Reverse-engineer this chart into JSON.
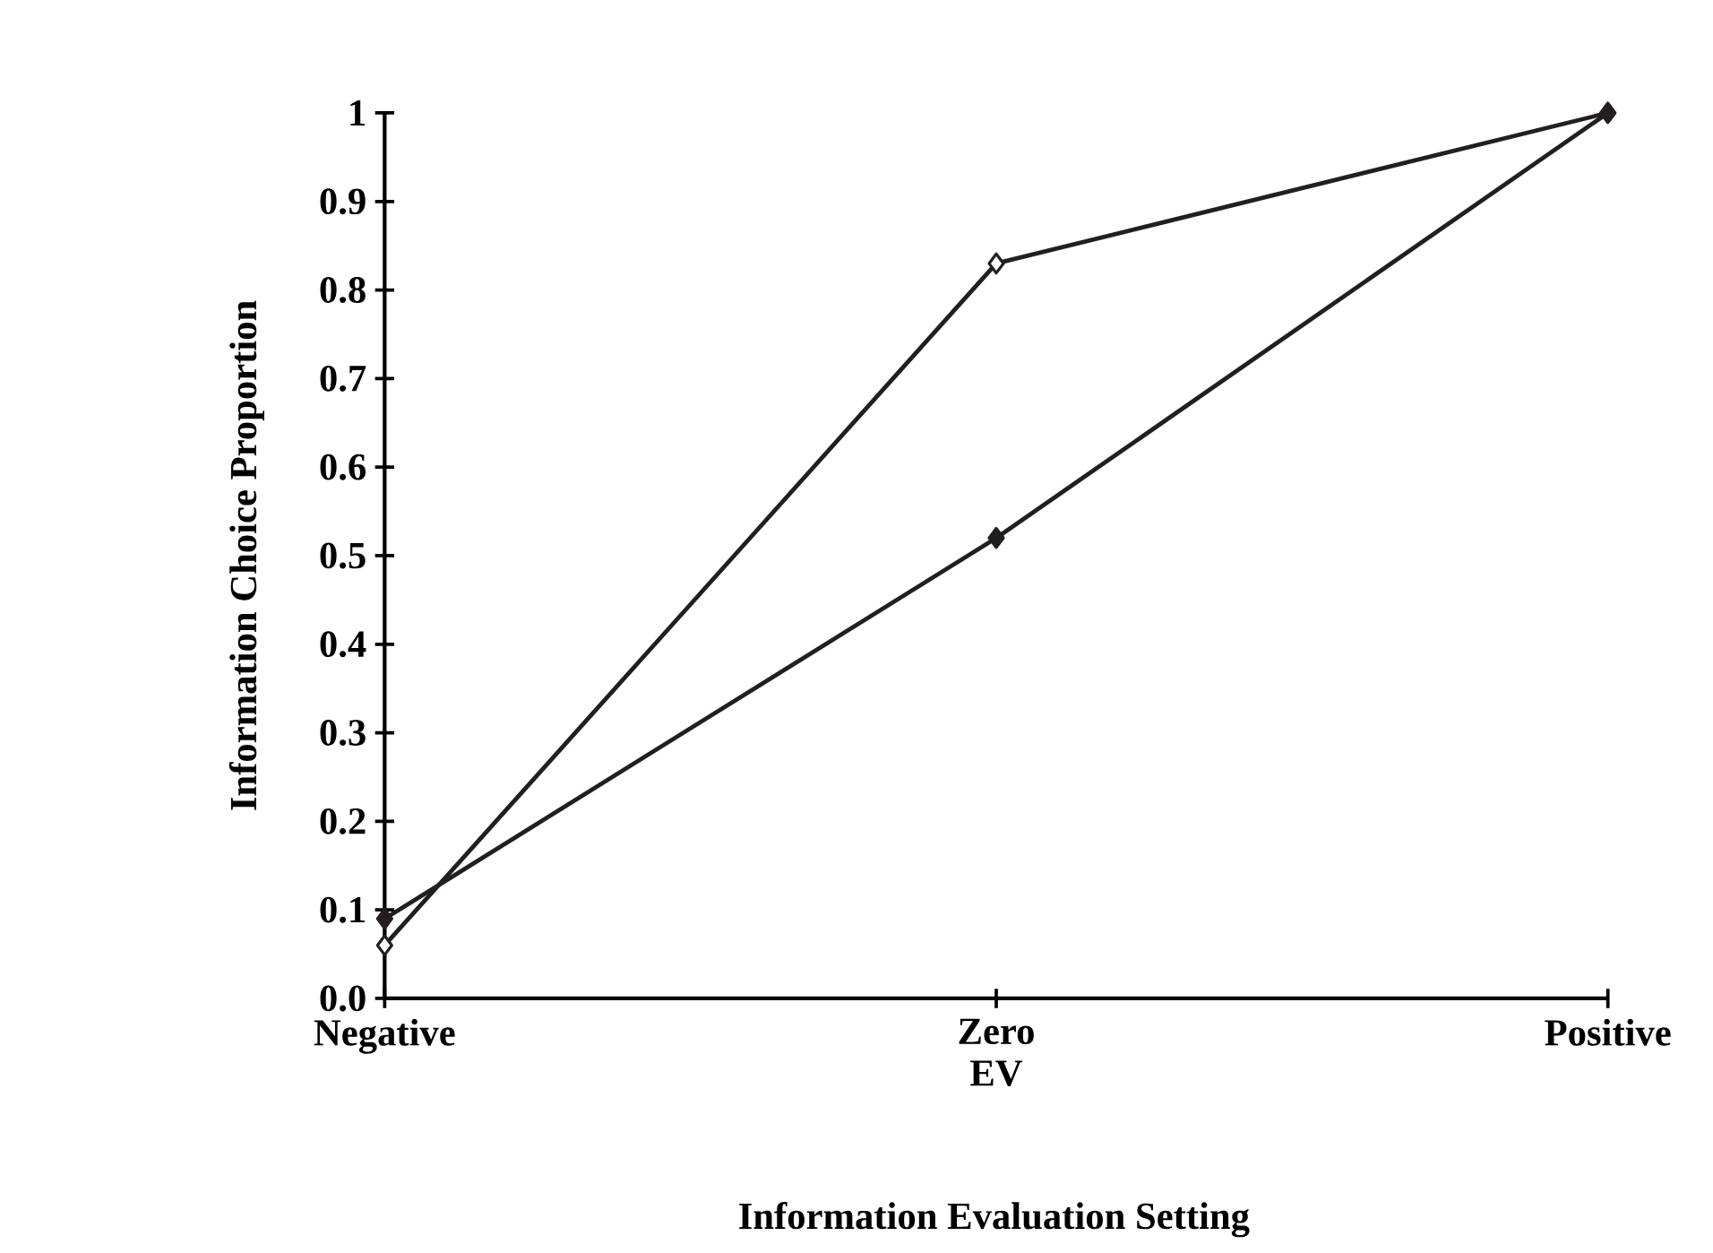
{
  "chart_data": {
    "type": "line",
    "categories": [
      "Negative",
      "Zero",
      "Positive"
    ],
    "xlabel": "EV",
    "ylabel": "Information Choice Proportion",
    "annotations": [
      "Information Evaluation Setting"
    ],
    "series": [
      {
        "color": "#231f20",
        "values": [
          0.06,
          0.83,
          1.0
        ]
      },
      {
        "color": "#231f20",
        "values": [
          0.09,
          0.52,
          1.0
        ]
      }
    ],
    "ylim": [
      0,
      1
    ],
    "yticks": [
      {
        "value": 0,
        "label": "0.0"
      },
      0.1,
      0.2,
      0.3,
      0.4,
      0.5,
      0.6,
      0.7,
      0.8,
      0.9,
      1
    ],
    "marker": "diamond",
    "line_style": "solid",
    "grid": false
  }
}
